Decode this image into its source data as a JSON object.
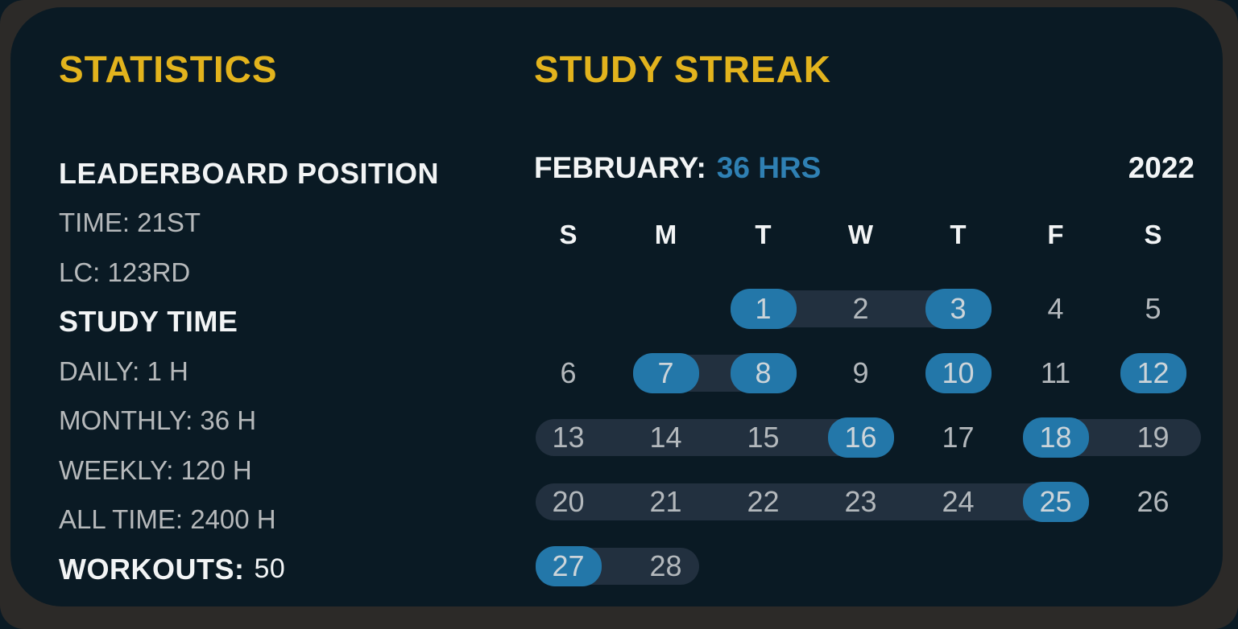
{
  "colors": {
    "frame_bg": "#2c2a28",
    "panel_bg": "#0a1a24",
    "accent_yellow": "#e2b31d",
    "accent_blue": "#2377a9",
    "accent_blue_text": "#2f80b3",
    "streak_band": "#22303f",
    "text_white": "#f2f4f5",
    "text_gray": "#b6b9bb",
    "day_number": "#b3b8bc",
    "day_number_on_blue": "#ccd4d9"
  },
  "statistics": {
    "title": "STATISTICS",
    "lines": [
      {
        "label": "LEADERBOARD POSITION",
        "style": "header"
      },
      {
        "label": "TIME: 21ST",
        "style": "value"
      },
      {
        "label": "LC: 123RD",
        "style": "value"
      },
      {
        "label": "STUDY TIME",
        "style": "header"
      },
      {
        "label": "DAILY: 1 H",
        "style": "value"
      },
      {
        "label": "MONTHLY: 36 H",
        "style": "value"
      },
      {
        "label": "WEEKLY: 120 H",
        "style": "value"
      },
      {
        "label": "ALL TIME: 2400 H",
        "style": "value"
      },
      {
        "label": "WORKOUTS:",
        "value": "50",
        "style": "header-with-value"
      }
    ]
  },
  "streak": {
    "title": "STUDY STREAK",
    "month_label": "FEBRUARY:",
    "month_hours": "36 HRS",
    "year": "2022",
    "day_headers": [
      "S",
      "M",
      "T",
      "W",
      "T",
      "F",
      "S"
    ],
    "weeks": [
      {
        "bands": [
          {
            "from_col": 2,
            "to_col": 4
          }
        ],
        "days": [
          {
            "num": "1",
            "col": 2,
            "studied": true
          },
          {
            "num": "2",
            "col": 3,
            "studied": false
          },
          {
            "num": "3",
            "col": 4,
            "studied": true
          },
          {
            "num": "4",
            "col": 5,
            "studied": false
          },
          {
            "num": "5",
            "col": 6,
            "studied": false
          }
        ]
      },
      {
        "bands": [
          {
            "from_col": 1,
            "to_col": 2
          }
        ],
        "days": [
          {
            "num": "6",
            "col": 0,
            "studied": false
          },
          {
            "num": "7",
            "col": 1,
            "studied": true
          },
          {
            "num": "8",
            "col": 2,
            "studied": true
          },
          {
            "num": "9",
            "col": 3,
            "studied": false
          },
          {
            "num": "10",
            "col": 4,
            "studied": true
          },
          {
            "num": "11",
            "col": 5,
            "studied": false
          },
          {
            "num": "12",
            "col": 6,
            "studied": true
          }
        ]
      },
      {
        "bands": [
          {
            "from_col": 0,
            "to_col": 3
          },
          {
            "from_col": 5,
            "to_col": 6,
            "extend_right": true
          }
        ],
        "days": [
          {
            "num": "13",
            "col": 0,
            "studied": false
          },
          {
            "num": "14",
            "col": 1,
            "studied": false
          },
          {
            "num": "15",
            "col": 2,
            "studied": false
          },
          {
            "num": "16",
            "col": 3,
            "studied": true
          },
          {
            "num": "17",
            "col": 4,
            "studied": false
          },
          {
            "num": "18",
            "col": 5,
            "studied": true
          },
          {
            "num": "19",
            "col": 6,
            "studied": false
          }
        ]
      },
      {
        "bands": [
          {
            "from_col": 0,
            "to_col": 5
          }
        ],
        "days": [
          {
            "num": "20",
            "col": 0,
            "studied": false
          },
          {
            "num": "21",
            "col": 1,
            "studied": false
          },
          {
            "num": "22",
            "col": 2,
            "studied": false
          },
          {
            "num": "23",
            "col": 3,
            "studied": false
          },
          {
            "num": "24",
            "col": 4,
            "studied": false
          },
          {
            "num": "25",
            "col": 5,
            "studied": true
          },
          {
            "num": "26",
            "col": 6,
            "studied": false
          }
        ]
      },
      {
        "bands": [
          {
            "from_col": 0,
            "to_col": 1
          }
        ],
        "days": [
          {
            "num": "27",
            "col": 0,
            "studied": true
          },
          {
            "num": "28",
            "col": 1,
            "studied": false
          }
        ]
      }
    ]
  }
}
